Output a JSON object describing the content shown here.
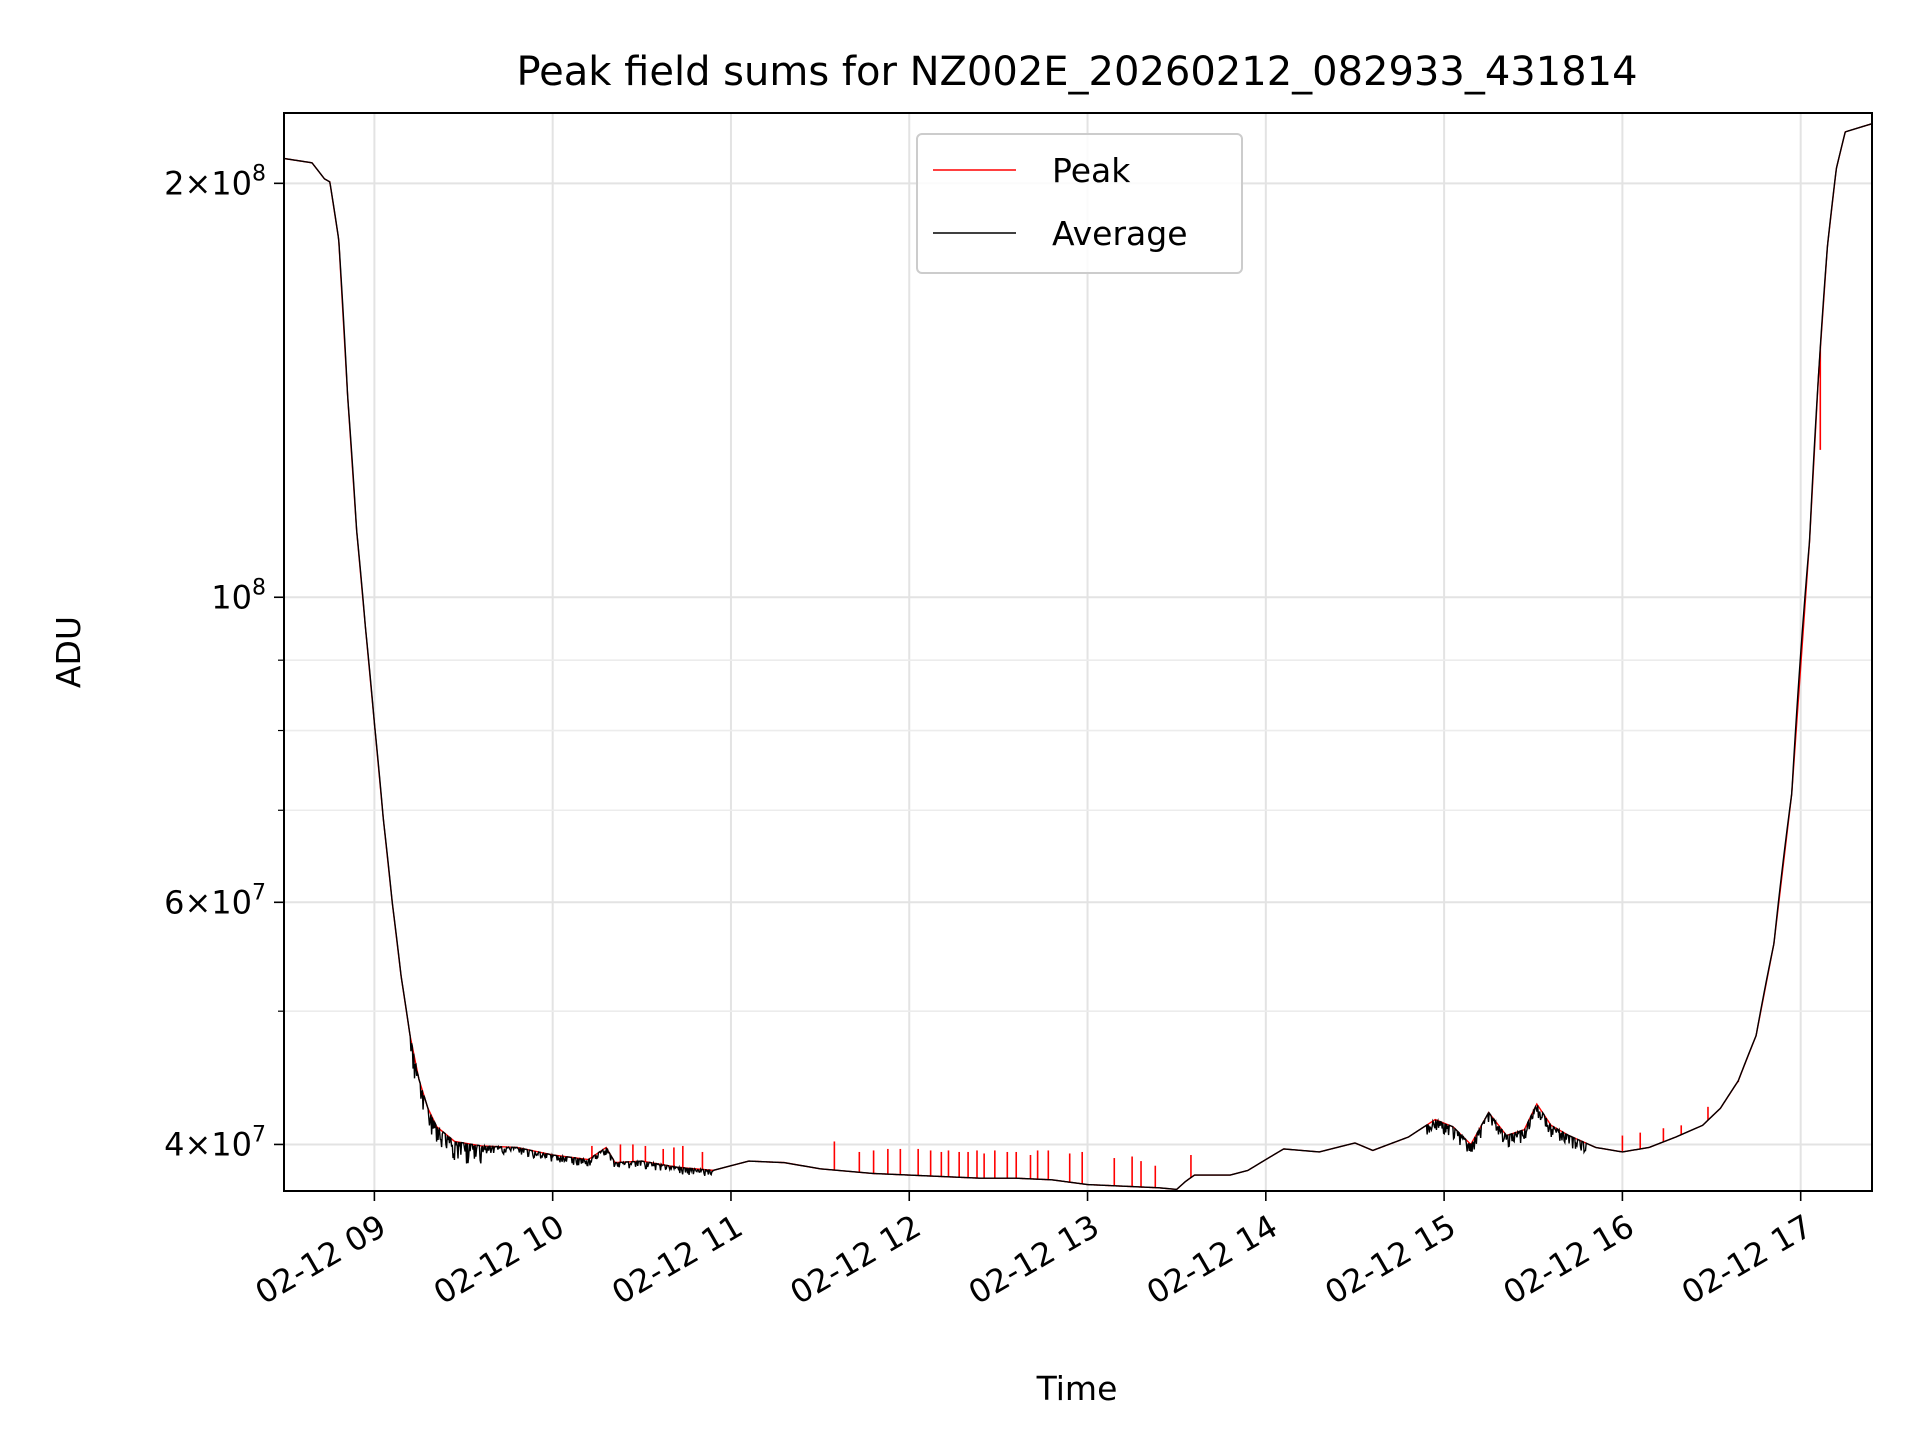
{
  "chart_data": {
    "type": "line",
    "title": "Peak field sums for NZ002E_20260212_082933_431814",
    "xlabel": "Time",
    "ylabel": "ADU",
    "yscale": "log",
    "grid": true,
    "legend_position": "top-center",
    "xlim_hours": [
      8.493,
      17.4
    ],
    "ylim": [
      37000000,
      225000000
    ],
    "x_ticks": [
      {
        "hour": 9,
        "label": "02-12 09"
      },
      {
        "hour": 10,
        "label": "02-12 10"
      },
      {
        "hour": 11,
        "label": "02-12 11"
      },
      {
        "hour": 12,
        "label": "02-12 12"
      },
      {
        "hour": 13,
        "label": "02-12 13"
      },
      {
        "hour": 14,
        "label": "02-12 14"
      },
      {
        "hour": 15,
        "label": "02-12 15"
      },
      {
        "hour": 16,
        "label": "02-12 16"
      },
      {
        "hour": 17,
        "label": "02-12 17"
      }
    ],
    "y_major_ticks": [
      {
        "value": 40000000,
        "mant": "4",
        "exp": "7"
      },
      {
        "value": 60000000,
        "mant": "6",
        "exp": "7"
      },
      {
        "value": 100000000,
        "mant": "",
        "exp": "8"
      },
      {
        "value": 200000000,
        "mant": "2",
        "exp": "8"
      }
    ],
    "y_minor_ticks": [
      50000000,
      70000000,
      80000000,
      90000000
    ],
    "x_unit": "hours since 2026-02-12 00:00",
    "series": [
      {
        "name": "Peak",
        "color": "#ff0000",
        "points": [
          [
            8.493,
            208500000
          ],
          [
            8.65,
            207000000
          ],
          [
            8.72,
            201500000
          ],
          [
            8.75,
            200500000
          ],
          [
            8.8,
            182000000
          ],
          [
            8.85,
            140000000
          ],
          [
            8.9,
            112000000
          ],
          [
            8.95,
            95000000
          ],
          [
            9.0,
            81000000
          ],
          [
            9.05,
            69000000
          ],
          [
            9.1,
            60000000
          ],
          [
            9.15,
            53000000
          ],
          [
            9.2,
            48000000
          ],
          [
            9.25,
            44600000
          ],
          [
            9.3,
            42500000
          ],
          [
            9.35,
            41200000
          ],
          [
            9.45,
            40200000
          ],
          [
            9.6,
            39900000
          ],
          [
            9.8,
            39800000
          ],
          [
            10.0,
            39300000
          ],
          [
            10.2,
            39000000
          ],
          [
            10.3,
            39800000
          ],
          [
            10.35,
            38800000
          ],
          [
            10.5,
            38900000
          ],
          [
            10.7,
            38500000
          ],
          [
            10.9,
            38300000
          ],
          [
            11.1,
            38900000
          ],
          [
            11.3,
            38800000
          ],
          [
            11.5,
            38400000
          ],
          [
            11.8,
            38100000
          ],
          [
            12.0,
            38000000
          ],
          [
            12.2,
            37900000
          ],
          [
            12.4,
            37800000
          ],
          [
            12.6,
            37800000
          ],
          [
            12.8,
            37700000
          ],
          [
            13.0,
            37400000
          ],
          [
            13.2,
            37300000
          ],
          [
            13.4,
            37200000
          ],
          [
            13.5,
            37100000
          ],
          [
            13.55,
            37600000
          ],
          [
            13.6,
            38000000
          ],
          [
            13.8,
            38000000
          ],
          [
            13.9,
            38300000
          ],
          [
            14.0,
            39000000
          ],
          [
            14.1,
            39700000
          ],
          [
            14.3,
            39500000
          ],
          [
            14.5,
            40100000
          ],
          [
            14.6,
            39600000
          ],
          [
            14.8,
            40500000
          ],
          [
            14.95,
            41700000
          ],
          [
            15.05,
            41200000
          ],
          [
            15.15,
            40000000
          ],
          [
            15.25,
            42200000
          ],
          [
            15.35,
            40600000
          ],
          [
            15.45,
            41000000
          ],
          [
            15.52,
            42800000
          ],
          [
            15.6,
            41300000
          ],
          [
            15.7,
            40600000
          ],
          [
            15.85,
            39800000
          ],
          [
            16.0,
            39500000
          ],
          [
            16.15,
            39800000
          ],
          [
            16.3,
            40500000
          ],
          [
            16.45,
            41300000
          ],
          [
            16.55,
            42500000
          ],
          [
            16.65,
            44500000
          ],
          [
            16.75,
            48000000
          ],
          [
            16.85,
            56000000
          ],
          [
            16.95,
            72000000
          ],
          [
            17.05,
            110000000
          ],
          [
            17.1,
            145000000
          ],
          [
            17.15,
            180000000
          ],
          [
            17.2,
            205000000
          ],
          [
            17.25,
            218000000
          ],
          [
            17.4,
            221000000
          ]
        ],
        "spikes": [
          [
            10.22,
            39900000
          ],
          [
            10.38,
            40000000
          ],
          [
            10.45,
            40000000
          ],
          [
            10.52,
            39900000
          ],
          [
            10.62,
            39700000
          ],
          [
            10.68,
            39800000
          ],
          [
            10.73,
            39900000
          ],
          [
            10.84,
            39500000
          ],
          [
            11.58,
            40200000
          ],
          [
            11.72,
            39500000
          ],
          [
            11.8,
            39600000
          ],
          [
            11.88,
            39700000
          ],
          [
            11.95,
            39700000
          ],
          [
            12.05,
            39700000
          ],
          [
            12.12,
            39600000
          ],
          [
            12.18,
            39500000
          ],
          [
            12.22,
            39600000
          ],
          [
            12.28,
            39500000
          ],
          [
            12.33,
            39500000
          ],
          [
            12.38,
            39600000
          ],
          [
            12.42,
            39400000
          ],
          [
            12.48,
            39600000
          ],
          [
            12.55,
            39500000
          ],
          [
            12.6,
            39500000
          ],
          [
            12.68,
            39300000
          ],
          [
            12.72,
            39600000
          ],
          [
            12.78,
            39600000
          ],
          [
            12.9,
            39400000
          ],
          [
            12.97,
            39500000
          ],
          [
            13.15,
            39100000
          ],
          [
            13.25,
            39200000
          ],
          [
            13.3,
            38900000
          ],
          [
            13.38,
            38600000
          ],
          [
            13.58,
            39300000
          ],
          [
            16.0,
            40600000
          ],
          [
            16.1,
            40800000
          ],
          [
            16.23,
            41100000
          ],
          [
            16.33,
            41300000
          ],
          [
            16.48,
            42600000
          ],
          [
            16.65,
            44400000
          ],
          [
            17.11,
            128000000
          ]
        ]
      },
      {
        "name": "Average",
        "color": "#000000",
        "points": [
          [
            8.493,
            208500000
          ],
          [
            8.65,
            207000000
          ],
          [
            8.72,
            201500000
          ],
          [
            8.75,
            200500000
          ],
          [
            8.8,
            182000000
          ],
          [
            8.85,
            140000000
          ],
          [
            8.9,
            112000000
          ],
          [
            8.95,
            95000000
          ],
          [
            9.0,
            81000000
          ],
          [
            9.05,
            69000000
          ],
          [
            9.1,
            60000000
          ],
          [
            9.15,
            53000000
          ],
          [
            9.2,
            48000000
          ],
          [
            9.25,
            44600000
          ],
          [
            9.3,
            42500000
          ],
          [
            9.35,
            41200000
          ],
          [
            9.45,
            40200000
          ],
          [
            9.6,
            39900000
          ],
          [
            9.8,
            39800000
          ],
          [
            10.0,
            39300000
          ],
          [
            10.2,
            39000000
          ],
          [
            10.3,
            39800000
          ],
          [
            10.35,
            38800000
          ],
          [
            10.5,
            38900000
          ],
          [
            10.7,
            38500000
          ],
          [
            10.9,
            38300000
          ],
          [
            11.1,
            38900000
          ],
          [
            11.3,
            38800000
          ],
          [
            11.5,
            38400000
          ],
          [
            11.8,
            38100000
          ],
          [
            12.0,
            38000000
          ],
          [
            12.2,
            37900000
          ],
          [
            12.4,
            37800000
          ],
          [
            12.6,
            37800000
          ],
          [
            12.8,
            37700000
          ],
          [
            13.0,
            37400000
          ],
          [
            13.2,
            37300000
          ],
          [
            13.4,
            37200000
          ],
          [
            13.5,
            37100000
          ],
          [
            13.55,
            37600000
          ],
          [
            13.6,
            38000000
          ],
          [
            13.8,
            38000000
          ],
          [
            13.9,
            38300000
          ],
          [
            14.0,
            39000000
          ],
          [
            14.1,
            39700000
          ],
          [
            14.3,
            39500000
          ],
          [
            14.5,
            40100000
          ],
          [
            14.6,
            39600000
          ],
          [
            14.8,
            40500000
          ],
          [
            14.95,
            41700000
          ],
          [
            15.05,
            41200000
          ],
          [
            15.15,
            40000000
          ],
          [
            15.25,
            42200000
          ],
          [
            15.35,
            40600000
          ],
          [
            15.45,
            41000000
          ],
          [
            15.52,
            42800000
          ],
          [
            15.6,
            41300000
          ],
          [
            15.7,
            40600000
          ],
          [
            15.85,
            39800000
          ],
          [
            16.0,
            39500000
          ],
          [
            16.15,
            39800000
          ],
          [
            16.3,
            40500000
          ],
          [
            16.45,
            41300000
          ],
          [
            16.55,
            42500000
          ],
          [
            16.65,
            44500000
          ],
          [
            16.75,
            48000000
          ],
          [
            16.85,
            56000000
          ],
          [
            16.95,
            72000000
          ],
          [
            17.05,
            110000000
          ],
          [
            17.1,
            145000000
          ],
          [
            17.15,
            180000000
          ],
          [
            17.2,
            205000000
          ],
          [
            17.25,
            218000000
          ],
          [
            17.4,
            221000000
          ]
        ],
        "noise_regions": [
          {
            "from": 9.2,
            "to": 9.6,
            "depth": 0.035
          },
          {
            "from": 9.6,
            "to": 10.9,
            "depth": 0.012
          },
          {
            "from": 14.9,
            "to": 15.8,
            "depth": 0.02
          }
        ]
      }
    ]
  }
}
